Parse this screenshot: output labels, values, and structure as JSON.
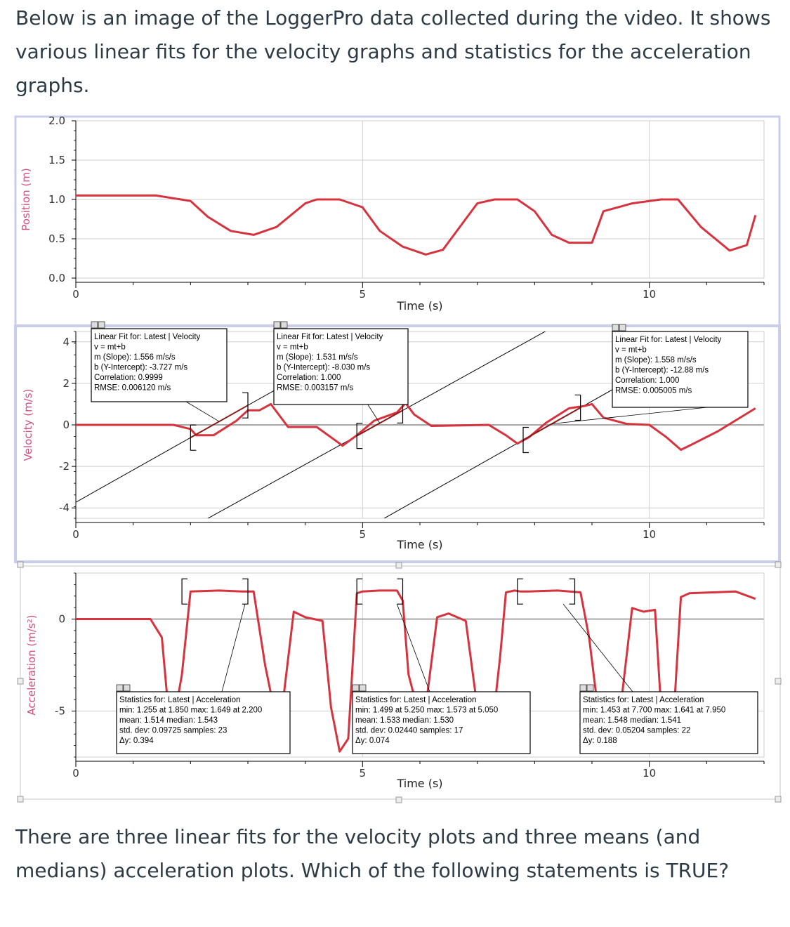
{
  "intro_text": "Below is an image of the LoggerPro data collected during the video.  It shows various linear fits for the velocity graphs and statistics for the acceleration graphs.",
  "question_text": "There are three linear fits for the velocity plots and three means (and medians) acceleration plots.  Which of the following statements is TRUE?",
  "colors": {
    "data": "#d6333f",
    "fit": "#000000",
    "fit_on_data": "#8b1a1a",
    "frame_blue": "#c8cdee",
    "grid": "#cfcfcf",
    "axis_label": "#d2507a"
  },
  "chart_data": [
    {
      "type": "line",
      "ylabel": "Position (m)",
      "xlabel": "Time (s)",
      "xlim": [
        0,
        12
      ],
      "ylim": [
        0,
        2
      ],
      "x_ticks": [
        "0",
        "5",
        "10"
      ],
      "y_ticks": [
        "2.0",
        "1.5",
        "1.0",
        "0.5",
        "0.0"
      ],
      "series": [
        {
          "x": [
            0,
            1.4,
            2.0,
            2.3,
            2.7,
            3.1,
            3.5,
            4.0,
            4.2,
            4.6,
            5.0,
            5.3,
            5.7,
            6.1,
            6.4,
            7.0,
            7.3,
            7.7,
            8.0,
            8.3,
            8.6,
            9.0,
            9.2,
            9.7,
            10.2,
            10.5,
            10.9,
            11.4,
            11.7,
            11.85
          ],
          "y": [
            1.05,
            1.05,
            0.98,
            0.78,
            0.6,
            0.55,
            0.65,
            0.95,
            1.0,
            1.0,
            0.9,
            0.6,
            0.4,
            0.3,
            0.36,
            0.95,
            1.0,
            1.0,
            0.85,
            0.55,
            0.45,
            0.45,
            0.85,
            0.95,
            1.0,
            1.0,
            0.65,
            0.35,
            0.42,
            0.8
          ]
        }
      ]
    },
    {
      "type": "line",
      "ylabel": "Velocity (m/s)",
      "xlabel": "Time (s)",
      "xlim": [
        0,
        12
      ],
      "ylim": [
        -4.5,
        4.5
      ],
      "x_ticks": [
        "0",
        "5",
        "10"
      ],
      "y_ticks": [
        "4",
        "2",
        "0",
        "-2",
        "-4"
      ],
      "series": [
        {
          "x": [
            0,
            1.7,
            2.0,
            2.1,
            2.4,
            2.8,
            3.0,
            3.2,
            3.4,
            3.7,
            4.2,
            4.5,
            4.65,
            4.9,
            5.2,
            5.4,
            5.6,
            5.75,
            5.9,
            6.2,
            7.2,
            7.5,
            7.7,
            7.9,
            8.2,
            8.6,
            8.85,
            9.0,
            9.2,
            9.6,
            10.0,
            10.3,
            10.55,
            10.7,
            11.2,
            11.85
          ],
          "y": [
            0,
            0,
            -0.2,
            -0.5,
            -0.5,
            0.2,
            0.7,
            0.7,
            1.0,
            -0.1,
            -0.1,
            -0.7,
            -1.0,
            -0.5,
            0.2,
            0.4,
            0.6,
            1.05,
            0.5,
            -0.05,
            0,
            -0.5,
            -0.9,
            -0.6,
            0.1,
            0.8,
            0.9,
            1.0,
            0.35,
            0.05,
            0,
            -0.6,
            -1.2,
            -1.0,
            -0.3,
            0.8
          ]
        }
      ],
      "fits": [
        {
          "title": "Linear Fit for: Latest | Velocity",
          "equation": "v = mt+b",
          "slope": "m (Slope): 1.556 m/s/s",
          "intercept": "b (Y-Intercept): -3.727 m/s",
          "correlation": "Correlation: 0.9999",
          "rmse": "RMSE: 0.006120 m/s",
          "m": 1.556,
          "b": -3.727,
          "range": [
            2.0,
            3.0
          ]
        },
        {
          "title": "Linear Fit for: Latest | Velocity",
          "equation": "v = mt+b",
          "slope": "m (Slope): 1.531 m/s/s",
          "intercept": "b (Y-Intercept): -8.030 m/s",
          "correlation": "Correlation: 1.000",
          "rmse": "RMSE: 0.003157 m/s",
          "m": 1.531,
          "b": -8.03,
          "range": [
            4.9,
            5.7
          ]
        },
        {
          "title": "Linear Fit for: Latest | Velocity",
          "equation": "v = mt+b",
          "slope": "m (Slope): 1.558 m/s/s",
          "intercept": "b (Y-Intercept): -12.88 m/s",
          "correlation": "Correlation: 1.000",
          "rmse": "RMSE: 0.005005 m/s",
          "m": 1.558,
          "b": -12.88,
          "range": [
            7.8,
            8.8
          ]
        }
      ]
    },
    {
      "type": "line",
      "ylabel": "Acceleration (m/s²)",
      "xlabel": "Time (s)",
      "xlim": [
        0,
        12
      ],
      "ylim": [
        -7.5,
        2.5
      ],
      "x_ticks": [
        "0",
        "5",
        "10"
      ],
      "y_ticks": [
        "0",
        "-5"
      ],
      "series": [
        {
          "x": [
            0,
            1.3,
            1.5,
            1.6,
            1.75,
            1.85,
            2.0,
            2.5,
            2.9,
            3.1,
            3.3,
            3.45,
            3.6,
            3.8,
            4.0,
            4.3,
            4.45,
            4.6,
            4.75,
            4.9,
            5.0,
            5.3,
            5.6,
            5.7,
            5.8,
            5.95,
            6.1,
            6.3,
            6.5,
            6.8,
            7.0,
            7.3,
            7.4,
            7.5,
            7.65,
            7.75,
            7.9,
            8.4,
            8.8,
            8.95,
            9.1,
            9.3,
            9.5,
            9.7,
            9.9,
            10.1,
            10.2,
            10.3,
            10.45,
            10.55,
            10.7,
            11.5,
            11.85
          ],
          "y": [
            0,
            0,
            -1.0,
            -4.5,
            -4.8,
            -3.0,
            1.5,
            1.55,
            1.5,
            1.5,
            -2.5,
            -4.8,
            -4.8,
            0.4,
            0.1,
            -0.1,
            -4.8,
            -7.2,
            -6.5,
            1.4,
            1.5,
            1.55,
            1.55,
            1.0,
            -3.0,
            -4.8,
            -4.8,
            0.1,
            0.3,
            -0.1,
            -4.8,
            -4.8,
            -2.0,
            1.45,
            1.55,
            1.5,
            1.5,
            1.55,
            1.45,
            -1.0,
            -4.8,
            -4.8,
            -4.8,
            0.6,
            0.4,
            0.5,
            -4.6,
            -4.8,
            -4.0,
            1.2,
            1.4,
            1.5,
            1.1
          ]
        }
      ],
      "stats": [
        {
          "title": "Statistics for: Latest | Acceleration",
          "minmax": "min: 1.255 at 1.850 max: 1.649 at 2.200",
          "mean": "mean: 1.514 median: 1.543",
          "stddev": "std. dev: 0.09725 samples: 23",
          "dy": "Δy: 0.394",
          "range": [
            1.85,
            3.0
          ]
        },
        {
          "title": "Statistics for: Latest | Acceleration",
          "minmax": "min: 1.499 at 5.250 max: 1.573 at 5.050",
          "mean": "mean: 1.533 median: 1.530",
          "stddev": "std. dev: 0.02440 samples: 17",
          "dy": "Δy: 0.074",
          "range": [
            4.9,
            5.7
          ]
        },
        {
          "title": "Statistics for: Latest | Acceleration",
          "minmax": "min: 1.453 at 7.700 max: 1.641 at 7.950",
          "mean": "mean: 1.548 median: 1.541",
          "stddev": "std. dev: 0.05204 samples: 22",
          "dy": "Δy: 0.188",
          "range": [
            7.7,
            8.7
          ]
        }
      ]
    }
  ]
}
